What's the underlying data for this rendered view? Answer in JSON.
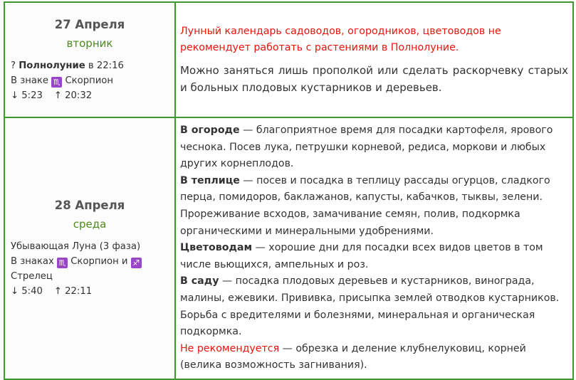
{
  "rows": [
    {
      "date": "27 Апреля",
      "weekday": "вторник",
      "phase_prefix": "?",
      "phase_bold": "Полнолуние",
      "phase_suffix": "в 22:16",
      "sign_prefix": "В знаке",
      "sign1_glyph": "♏",
      "sign1": "Скорпион",
      "sunrise": "↓ 5:23",
      "sunset": "↑ 20:32",
      "warning": "Лунный календарь садоводов, огородников, цветоводов не рекомендует работать с растениями в Полнолуние.",
      "text": "Можно заняться лишь прополкой или сделать раскорчевку старых и больных плодовых кустарников и деревьев."
    },
    {
      "date": "28 Апреля",
      "weekday": "среда",
      "phase": "Убывающая Луна (3 фаза)",
      "sign_prefix": "В знаках",
      "sign1_glyph": "♏",
      "sign1": "Скорпион и",
      "sign2_glyph": "♐",
      "sign2": "Стрелец",
      "sunrise": "↓ 5:40",
      "sunset": "↑ 22:11",
      "sections": [
        {
          "title": "В огороде",
          "text": "— благоприятное время для посадки картофеля, ярового чеснока. Посев лука, петрушки корневой, редиса, моркови и любых других корнеплодов."
        },
        {
          "title": "В теплице",
          "text": "— посев и посадка в теплицу рассады огурцов, сладкого перца, помидоров, баклажанов, капусты, кабачков, тыквы, зелени. Прореживание всходов, замачивание семян, полив, подкормка органическими и минеральными удобрениями."
        },
        {
          "title": "Цветоводам",
          "text": "— хорошие дни для посадки всех видов цветов в том числе вьющихся, ампельных и роз."
        },
        {
          "title": "В саду",
          "text": "— посадка плодовых деревьев и кустарников, винограда, малины, ежевики. Прививка, присыпка землей отводков кустарников. Борьба с вредителями и болезнями, минеральная и органическая подкормка."
        }
      ],
      "not_recommended_label": "Не рекомендуется",
      "not_recommended_text": "— обрезка и деление клубнелуковиц, корней (велика возможность загнивания)."
    }
  ]
}
